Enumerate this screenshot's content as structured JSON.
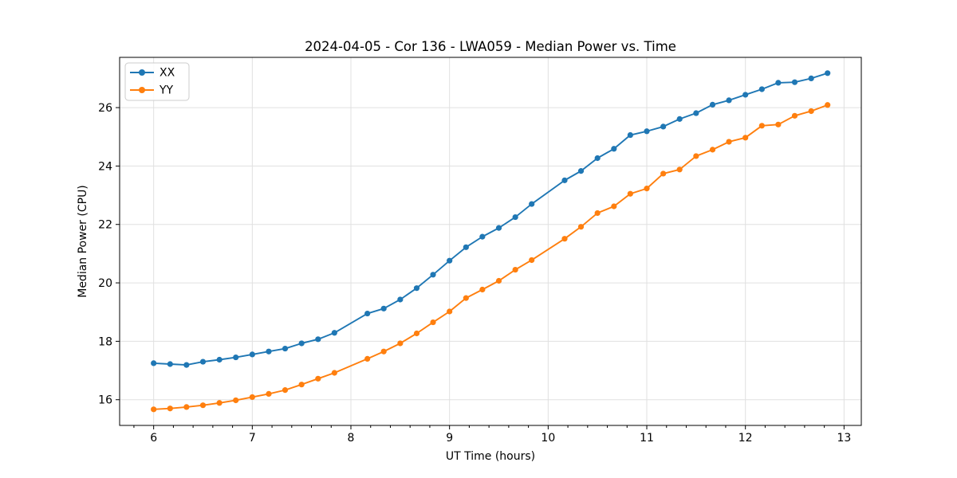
{
  "figure": {
    "background": "#ffffff"
  },
  "chart_data": {
    "type": "line",
    "title": "2024-04-05 - Cor 136 - LWA059 - Median Power vs. Time",
    "xlabel": "UT Time (hours)",
    "ylabel": "Median Power (CPU)",
    "xlim": [
      5.655,
      13.175
    ],
    "ylim": [
      15.12,
      27.72
    ],
    "xticks": [
      6,
      7,
      8,
      9,
      10,
      11,
      12,
      13
    ],
    "yticks": [
      16,
      18,
      20,
      22,
      24,
      26
    ],
    "x_minor_step": 0.2,
    "grid": true,
    "legend_position": "upper-left",
    "marker": "circle",
    "series": [
      {
        "name": "XX",
        "color": "#1f77b4",
        "x": [
          6.0,
          6.167,
          6.333,
          6.5,
          6.667,
          6.833,
          7.0,
          7.167,
          7.333,
          7.5,
          7.667,
          7.833,
          8.167,
          8.333,
          8.5,
          8.667,
          8.833,
          9.0,
          9.167,
          9.333,
          9.5,
          9.667,
          9.833,
          10.167,
          10.333,
          10.5,
          10.667,
          10.833,
          11.0,
          11.167,
          11.333,
          11.5,
          11.667,
          11.833,
          12.0,
          12.167,
          12.333,
          12.5,
          12.667,
          12.833
        ],
        "y": [
          17.25,
          17.22,
          17.19,
          17.3,
          17.37,
          17.45,
          17.55,
          17.65,
          17.75,
          17.93,
          18.07,
          18.29,
          18.95,
          19.12,
          19.43,
          19.82,
          20.28,
          20.76,
          21.22,
          21.58,
          21.88,
          22.25,
          22.7,
          23.51,
          23.83,
          24.27,
          24.59,
          25.06,
          25.19,
          25.35,
          25.61,
          25.81,
          26.1,
          26.25,
          26.44,
          26.63,
          26.85,
          26.87,
          27.0,
          27.18
        ]
      },
      {
        "name": "YY",
        "color": "#ff7f0e",
        "x": [
          6.0,
          6.167,
          6.333,
          6.5,
          6.667,
          6.833,
          7.0,
          7.167,
          7.333,
          7.5,
          7.667,
          7.833,
          8.167,
          8.333,
          8.5,
          8.667,
          8.833,
          9.0,
          9.167,
          9.333,
          9.5,
          9.667,
          9.833,
          10.167,
          10.333,
          10.5,
          10.667,
          10.833,
          11.0,
          11.167,
          11.333,
          11.5,
          11.667,
          11.833,
          12.0,
          12.167,
          12.333,
          12.5,
          12.667,
          12.833
        ],
        "y": [
          15.67,
          15.7,
          15.75,
          15.81,
          15.89,
          15.98,
          16.09,
          16.2,
          16.33,
          16.52,
          16.72,
          16.92,
          17.4,
          17.65,
          17.93,
          18.27,
          18.65,
          19.02,
          19.48,
          19.77,
          20.07,
          20.45,
          20.78,
          21.51,
          21.92,
          22.39,
          22.62,
          23.05,
          23.23,
          23.74,
          23.88,
          24.34,
          24.56,
          24.83,
          24.97,
          25.38,
          25.42,
          25.72,
          25.88,
          26.09
        ]
      }
    ],
    "style": {
      "grid_color": "#e0e0e0",
      "spine_color": "#000000",
      "tick_color": "#000000",
      "text_color": "#000000",
      "legend_border": "#cccccc",
      "legend_background": "#ffffff"
    }
  }
}
